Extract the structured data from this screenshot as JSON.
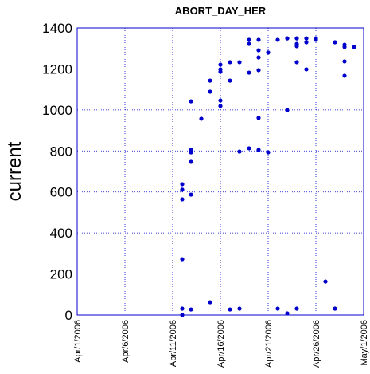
{
  "chart_data": {
    "type": "scatter",
    "title": "ABORT_DAY_HER",
    "y_label": "current",
    "color": "#0000cc",
    "grid": true,
    "x": [
      12,
      12,
      12,
      12,
      12,
      12,
      12.92,
      12.92,
      12.92,
      12.92,
      12.92,
      12.92,
      14,
      14.92,
      14.92,
      14.92,
      16,
      16,
      16,
      16,
      16,
      17,
      17,
      17,
      18,
      18,
      18,
      19,
      19,
      19,
      19,
      20,
      20,
      20,
      20,
      20,
      20,
      21,
      21,
      22,
      22,
      23,
      23,
      23,
      24,
      24,
      24,
      24,
      24,
      25,
      25,
      25,
      26,
      26,
      27,
      28,
      28,
      29,
      29,
      29,
      29,
      30
    ],
    "y": [
      638,
      611,
      564,
      272,
      31,
      0,
      1042,
      805,
      793,
      747,
      587,
      27,
      957,
      1143,
      1089,
      62,
      1221,
      1198,
      1186,
      1046,
      1019,
      1233,
      1143,
      27,
      1233,
      797,
      31,
      1342,
      1322,
      1182,
      813,
      1342,
      1291,
      1256,
      1194,
      961,
      805,
      1280,
      793,
      1342,
      31,
      1349,
      999,
      8,
      1349,
      1322,
      1311,
      1233,
      31,
      1349,
      1330,
      1198,
      1349,
      1342,
      163,
      1330,
      31,
      1318,
      1307,
      1237,
      1167,
      1307
    ],
    "xlim": [
      1,
      31
    ],
    "xticks": [
      {
        "value": 1,
        "label": "Apr/1/2006"
      },
      {
        "value": 6,
        "label": "Apr/6/2006"
      },
      {
        "value": 11,
        "label": "Apr/11/2006"
      },
      {
        "value": 16,
        "label": "Apr/16/2006"
      },
      {
        "value": 21,
        "label": "Apr/21/2006"
      },
      {
        "value": 26,
        "label": "Apr/26/2006"
      },
      {
        "value": 31,
        "label": "May/1/2006"
      }
    ],
    "ylim": [
      0,
      1400
    ],
    "yticks": [
      0,
      200,
      400,
      600,
      800,
      1000,
      1200,
      1400
    ]
  }
}
